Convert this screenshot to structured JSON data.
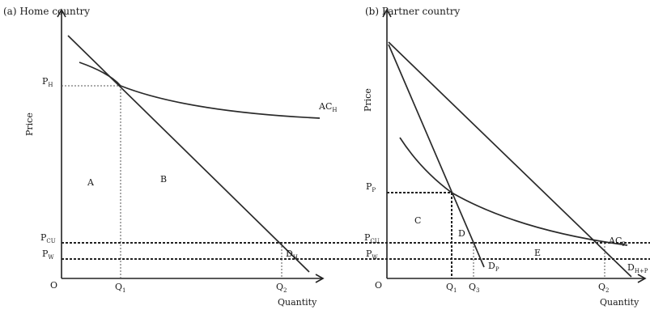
{
  "panel_a": {
    "title": "(a) Home country",
    "y_axis_label": "Price",
    "x_axis_label": "Quantity",
    "origin": "O",
    "price_labels": {
      "ph": "P",
      "ph_sub": "H",
      "pcu": "P",
      "pcu_sub": "CU",
      "pw": "P",
      "pw_sub": "W"
    },
    "quantity_labels": {
      "q1": "Q",
      "q1_sub": "1",
      "q2": "Q",
      "q2_sub": "2"
    },
    "areas": {
      "a": "A",
      "b": "B"
    },
    "curves": {
      "ac": "AC",
      "ac_sub": "H",
      "d": "D",
      "d_sub": "H"
    }
  },
  "panel_b": {
    "title": "(b) Partner country",
    "y_axis_label": "Price",
    "x_axis_label": "Quantity",
    "origin": "O",
    "price_labels": {
      "pp": "P",
      "pp_sub": "P",
      "pcu": "P",
      "pcu_sub": "CU",
      "pw": "P",
      "pw_sub": "W"
    },
    "quantity_labels": {
      "q1": "Q",
      "q1_sub": "1",
      "q3": "Q",
      "q3_sub": "3",
      "q2": "Q",
      "q2_sub": "2"
    },
    "areas": {
      "c": "C",
      "d": "D",
      "e": "E"
    },
    "curves": {
      "ac": "AC",
      "ac_sub": "P",
      "dp": "D",
      "dp_sub": "P",
      "dhp": "D",
      "dhp_sub": "H+P"
    }
  }
}
